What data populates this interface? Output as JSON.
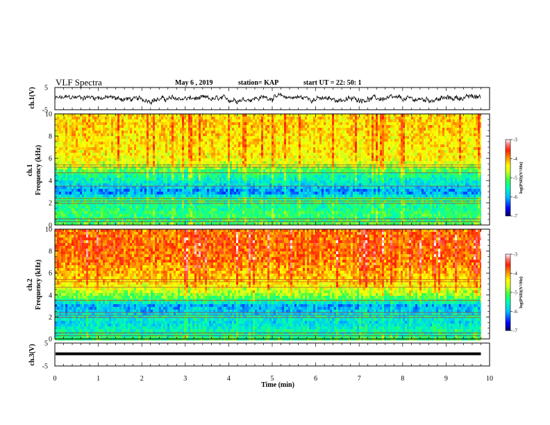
{
  "header": {
    "title": "VLF Spectra",
    "date": "May 6 , 2019",
    "station": "station= KAP",
    "start_time": "start UT = 22: 50: 1"
  },
  "colors": {
    "trace": "#000000",
    "colormap": [
      "#000060",
      "#0000ff",
      "#00c0ff",
      "#00ffb0",
      "#40ff40",
      "#d0ff20",
      "#ffff00",
      "#ff9000",
      "#ff2000",
      "#ff8080",
      "#ffffff"
    ]
  },
  "chart_data": [
    {
      "type": "line",
      "name": "ch1-waveform",
      "ylabel": "ch.1(V)",
      "ylim": [
        -5,
        5
      ],
      "yticks": [
        "5",
        "-5"
      ],
      "xlim": [
        0,
        10
      ],
      "data_extent_min": 9.8,
      "baseline": 0.0,
      "amplitude": 1.3
    },
    {
      "type": "heatmap",
      "name": "ch1-spectrogram",
      "ylabel_channel": "ch.1",
      "ylabel": "Frequency (kHz)",
      "ylim": [
        0,
        10
      ],
      "yticks": [
        "0",
        "2",
        "4",
        "6",
        "8",
        "10"
      ],
      "xlim": [
        0,
        10
      ],
      "data_extent_min": 9.8,
      "colorbar": {
        "label": "log(PSD)(V²/Hz)",
        "range": [
          -7,
          -3
        ],
        "ticks": [
          "-3",
          "-4",
          "-5",
          "-6",
          "-7"
        ]
      },
      "psd_profile": [
        {
          "f": 0.0,
          "v": -5.0
        },
        {
          "f": 0.5,
          "v": -5.3
        },
        {
          "f": 1.0,
          "v": -5.2
        },
        {
          "f": 1.5,
          "v": -5.4
        },
        {
          "f": 2.0,
          "v": -5.3
        },
        {
          "f": 2.3,
          "v": -5.2
        },
        {
          "f": 2.7,
          "v": -5.9
        },
        {
          "f": 3.0,
          "v": -6.2
        },
        {
          "f": 3.5,
          "v": -5.8
        },
        {
          "f": 4.0,
          "v": -5.6
        },
        {
          "f": 4.5,
          "v": -5.4
        },
        {
          "f": 5.0,
          "v": -5.0
        },
        {
          "f": 5.5,
          "v": -4.6
        },
        {
          "f": 6.0,
          "v": -4.4
        },
        {
          "f": 7.0,
          "v": -4.3
        },
        {
          "f": 8.0,
          "v": -4.3
        },
        {
          "f": 9.0,
          "v": -4.2
        },
        {
          "f": 10.0,
          "v": -4.3
        }
      ]
    },
    {
      "type": "heatmap",
      "name": "ch2-spectrogram",
      "ylabel_channel": "ch.2",
      "ylabel": "Frequency (kHz)",
      "ylim": [
        0,
        10
      ],
      "yticks": [
        "0",
        "2",
        "4",
        "6",
        "8",
        "10"
      ],
      "xlim": [
        0,
        10
      ],
      "data_extent_min": 9.8,
      "colorbar": {
        "label": "log(PSD)(V²/Hz)",
        "range": [
          -7,
          -3
        ],
        "ticks": [
          "-3",
          "-4",
          "-5",
          "-6",
          "-7"
        ]
      },
      "psd_profile": [
        {
          "f": 0.0,
          "v": -5.2
        },
        {
          "f": 0.5,
          "v": -5.4
        },
        {
          "f": 1.0,
          "v": -5.6
        },
        {
          "f": 1.5,
          "v": -5.8
        },
        {
          "f": 2.0,
          "v": -5.6
        },
        {
          "f": 2.5,
          "v": -5.9
        },
        {
          "f": 3.0,
          "v": -6.1
        },
        {
          "f": 3.5,
          "v": -5.3
        },
        {
          "f": 4.0,
          "v": -4.9
        },
        {
          "f": 4.5,
          "v": -4.6
        },
        {
          "f": 5.0,
          "v": -4.3
        },
        {
          "f": 6.0,
          "v": -4.1
        },
        {
          "f": 7.0,
          "v": -3.9
        },
        {
          "f": 8.0,
          "v": -3.8
        },
        {
          "f": 9.0,
          "v": -3.8
        },
        {
          "f": 10.0,
          "v": -3.9
        }
      ]
    },
    {
      "type": "line",
      "name": "ch3-waveform",
      "ylabel": "ch.3(V)",
      "ylim": [
        -5,
        5
      ],
      "yticks": [
        "5",
        "-5"
      ],
      "xlim": [
        0,
        10
      ],
      "data_extent_min": 9.8,
      "baseline": 0.0,
      "amplitude": 0.0
    }
  ],
  "xaxis": {
    "label": "Time (min)",
    "ticks": [
      "0",
      "1",
      "2",
      "3",
      "4",
      "5",
      "6",
      "7",
      "8",
      "9",
      "10"
    ]
  }
}
